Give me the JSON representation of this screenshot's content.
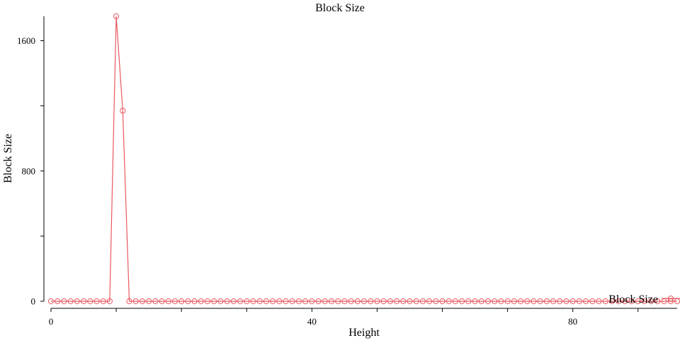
{
  "chart_data": {
    "type": "line",
    "title": "Block Size",
    "xlabel": "Height",
    "ylabel": "Block Size",
    "xlim": [
      0,
      96
    ],
    "ylim": [
      0,
      1750
    ],
    "x_ticks": [
      0,
      40,
      80
    ],
    "x_minor_ticks": [
      0,
      10,
      20,
      30,
      40,
      50,
      60,
      70,
      80,
      90
    ],
    "y_ticks": [
      0,
      800,
      1600
    ],
    "y_minor_ticks": [
      0,
      400,
      800,
      1200,
      1600
    ],
    "legend_position": "bottom-right",
    "grid": false,
    "series": [
      {
        "name": "Block Size",
        "color": "#e8585f",
        "marker": "circle-open",
        "x": [
          0,
          1,
          2,
          3,
          4,
          5,
          6,
          7,
          8,
          9,
          10,
          11,
          12,
          13,
          14,
          15,
          16,
          17,
          18,
          19,
          20,
          21,
          22,
          23,
          24,
          25,
          26,
          27,
          28,
          29,
          30,
          31,
          32,
          33,
          34,
          35,
          36,
          37,
          38,
          39,
          40,
          41,
          42,
          43,
          44,
          45,
          46,
          47,
          48,
          49,
          50,
          51,
          52,
          53,
          54,
          55,
          56,
          57,
          58,
          59,
          60,
          61,
          62,
          63,
          64,
          65,
          66,
          67,
          68,
          69,
          70,
          71,
          72,
          73,
          74,
          75,
          76,
          77,
          78,
          79,
          80,
          81,
          82,
          83,
          84,
          85,
          86,
          87,
          88,
          89,
          90,
          91,
          92,
          93,
          94,
          95,
          96
        ],
        "y": [
          0,
          0,
          0,
          0,
          0,
          0,
          0,
          0,
          0,
          0,
          1750,
          1170,
          0,
          0,
          0,
          0,
          0,
          0,
          0,
          0,
          0,
          0,
          0,
          0,
          0,
          0,
          0,
          0,
          0,
          0,
          0,
          0,
          0,
          0,
          0,
          0,
          0,
          0,
          0,
          0,
          0,
          0,
          0,
          0,
          0,
          0,
          0,
          0,
          0,
          0,
          0,
          0,
          0,
          0,
          0,
          0,
          0,
          0,
          0,
          0,
          0,
          0,
          0,
          0,
          0,
          0,
          0,
          0,
          0,
          0,
          0,
          0,
          0,
          0,
          0,
          0,
          0,
          0,
          0,
          0,
          0,
          0,
          0,
          0,
          0,
          0,
          0,
          0,
          0,
          0,
          0,
          0,
          0,
          0,
          0,
          0,
          0
        ]
      }
    ]
  }
}
